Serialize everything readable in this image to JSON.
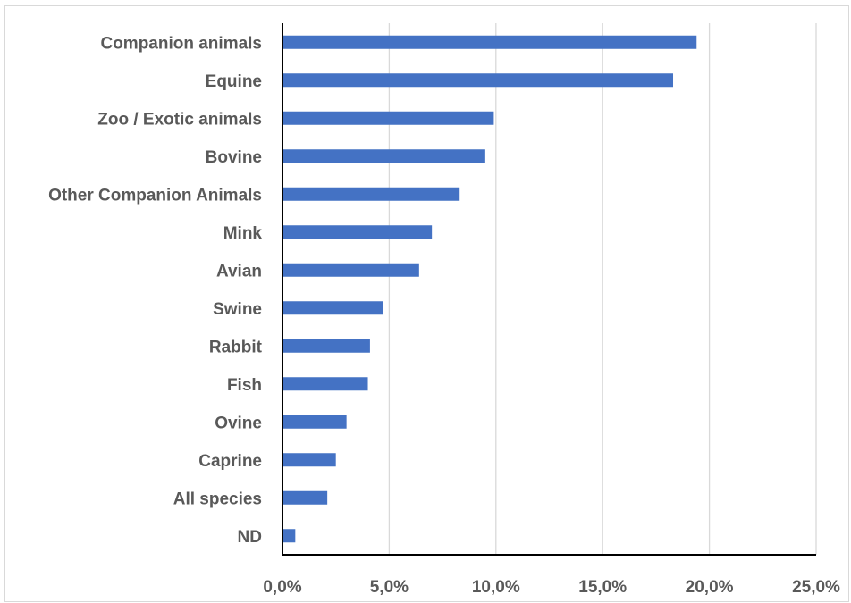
{
  "chart_data": {
    "type": "bar",
    "orientation": "horizontal",
    "categories": [
      "Companion animals",
      "Equine",
      "Zoo / Exotic animals",
      "Bovine",
      "Other Companion Animals",
      "Mink",
      "Avian",
      "Swine",
      "Rabbit",
      "Fish",
      "Ovine",
      "Caprine",
      "All species",
      "ND"
    ],
    "values": [
      19.4,
      18.3,
      9.9,
      9.5,
      8.3,
      7.0,
      6.4,
      4.7,
      4.1,
      4.0,
      3.0,
      2.5,
      2.1,
      0.6
    ],
    "xlim": [
      0,
      25
    ],
    "xticks": [
      0,
      5,
      10,
      15,
      20,
      25
    ],
    "xtick_labels": [
      "0,0%",
      "5,0%",
      "10,0%",
      "15,0%",
      "20,0%",
      "25,0%"
    ],
    "title": "",
    "xlabel": "",
    "ylabel": "",
    "grid": "vertical",
    "legend": "none",
    "colors": {
      "bar": "#4472c4",
      "grid": "#d9d9d9",
      "axis": "#000000",
      "text": "#595959"
    }
  }
}
